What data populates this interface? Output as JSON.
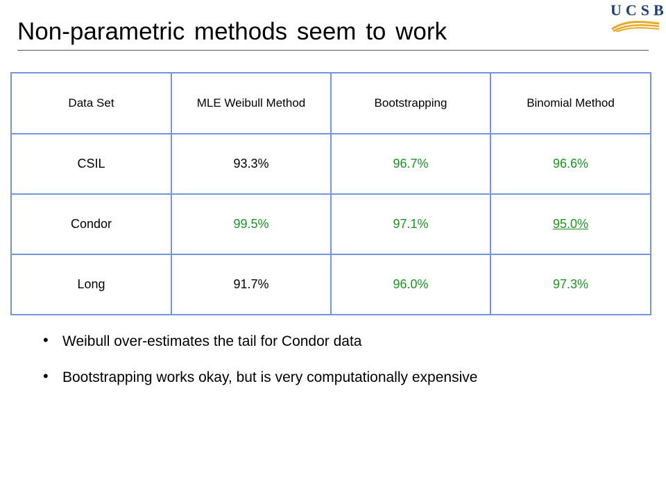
{
  "slide": {
    "title": "Non-parametric methods seem to work",
    "logo_text": "UCSB",
    "colors": {
      "table_border": "#7394e0",
      "highlight": "#17961c",
      "logo_blue": "#1b3d7a",
      "logo_gold": "#e7a824"
    }
  },
  "table": {
    "headers": [
      "Data Set",
      "MLE Weibull Method",
      "Bootstrapping",
      "Binomial Method"
    ],
    "rows": [
      {
        "name": "CSIL",
        "mle": "93.3%",
        "boot": "96.7%",
        "binom": "96.6%"
      },
      {
        "name": "Condor",
        "mle": "99.5%",
        "boot": "97.1%",
        "binom": "95.0%"
      },
      {
        "name": "Long",
        "mle": "91.7%",
        "boot": "96.0%",
        "binom": "97.3%"
      }
    ]
  },
  "bullets": [
    "Weibull over-estimates the tail for Condor data",
    "Bootstrapping works okay, but is very computationally expensive"
  ]
}
